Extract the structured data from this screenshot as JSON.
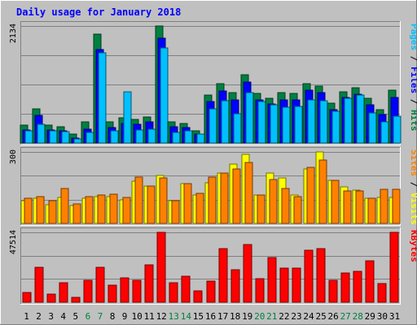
{
  "chart_data": {
    "type": "bar",
    "title": "Daily usage for January 2018",
    "categories": [
      "1",
      "2",
      "3",
      "4",
      "5",
      "6",
      "7",
      "8",
      "9",
      "10",
      "11",
      "12",
      "13",
      "14",
      "15",
      "16",
      "17",
      "18",
      "19",
      "20",
      "21",
      "22",
      "23",
      "24",
      "25",
      "26",
      "27",
      "28",
      "29",
      "30",
      "31"
    ],
    "weekend_days": [
      "6",
      "7",
      "13",
      "14",
      "20",
      "21",
      "27",
      "28"
    ],
    "panels": [
      {
        "ymax_label": "2134",
        "ymax": 2134,
        "series": [
          {
            "name": "Hits",
            "values": [
              330,
              620,
              320,
              300,
              160,
              390,
              1980,
              380,
              460,
              435,
              480,
              2134,
              390,
              360,
              225,
              870,
              1080,
              915,
              1240,
              910,
              820,
              925,
              900,
              1080,
              1030,
              720,
              935,
              1010,
              810,
              615,
              960
            ]
          },
          {
            "name": "Files",
            "values": [
              240,
              500,
              235,
              215,
              95,
              255,
              1700,
              285,
              360,
              340,
              390,
              1910,
              290,
              285,
              170,
              760,
              950,
              790,
              1105,
              790,
              710,
              790,
              780,
              960,
              920,
              605,
              825,
              895,
              700,
              515,
              835
            ]
          },
          {
            "name": "Pages",
            "values": [
              225,
              335,
              225,
              210,
              75,
              195,
              1640,
              220,
              935,
              240,
              245,
              1740,
              190,
              225,
              160,
              620,
              770,
              530,
              920,
              760,
              690,
              650,
              660,
              785,
              765,
              575,
              810,
              875,
              555,
              380,
              490
            ]
          }
        ]
      },
      {
        "ymax_label": "300",
        "ymax": 300,
        "series": [
          {
            "name": "Visits",
            "values": [
              96,
              106,
              80,
              110,
              75,
              105,
              112,
              112,
              100,
              178,
              156,
              200,
              96,
              168,
              120,
              172,
              210,
              250,
              290,
              120,
              212,
              190,
              120,
              230,
              300,
              180,
              155,
              140,
              105,
              110,
              110
            ]
          },
          {
            "name": "Sites",
            "values": [
              106,
              112,
              96,
              148,
              82,
              112,
              120,
              122,
              108,
              196,
              158,
              192,
              96,
              166,
              126,
              194,
              212,
              230,
              256,
              120,
              184,
              148,
              112,
              236,
              266,
              182,
              138,
              136,
              105,
              142,
              142
            ]
          }
        ]
      },
      {
        "ymax_label": "47514",
        "ymax": 47514,
        "series": [
          {
            "name": "KBytes",
            "values": [
              6500,
              23500,
              5500,
              13000,
              3500,
              15000,
              23500,
              11500,
              16500,
              15000,
              25500,
              47514,
              13500,
              17500,
              7500,
              14500,
              36500,
              22000,
              39500,
              16000,
              30500,
              23000,
              23000,
              35500,
              36500,
              15000,
              20000,
              21000,
              28000,
              12500,
              47514
            ]
          }
        ]
      }
    ],
    "colors": {
      "Hits": "#008040",
      "Files": "#0000ff",
      "Pages": "#00c0ff",
      "Visits": "#ffff00",
      "Sites": "#ff8000",
      "KBytes": "#ff0000",
      "title": "#0000ff",
      "weekend_label": "#008040",
      "weekday_label": "#000000"
    }
  }
}
